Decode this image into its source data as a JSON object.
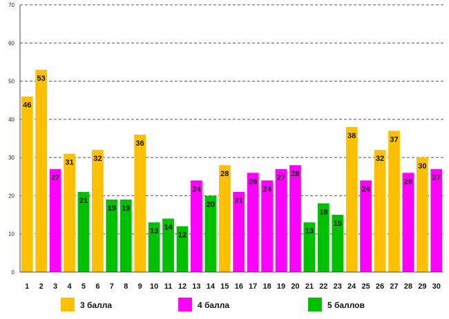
{
  "chart_data": {
    "type": "bar",
    "title": "",
    "xlabel": "",
    "ylabel": "",
    "ylim": [
      0,
      70
    ],
    "yticks": [
      0,
      10,
      20,
      30,
      40,
      50,
      60,
      70
    ],
    "grid": true,
    "legend_position": "bottom",
    "categories": [
      "1",
      "2",
      "3",
      "4",
      "5",
      "6",
      "7",
      "8",
      "9",
      "10",
      "11",
      "12",
      "13",
      "14",
      "15",
      "16",
      "17",
      "18",
      "19",
      "20",
      "21",
      "22",
      "23",
      "24",
      "25",
      "26",
      "27",
      "28",
      "29",
      "30"
    ],
    "values": [
      46,
      53,
      27,
      31,
      21,
      32,
      19,
      19,
      36,
      13,
      14,
      12,
      24,
      20,
      28,
      21,
      26,
      24,
      27,
      28,
      13,
      18,
      15,
      38,
      24,
      32,
      37,
      26,
      30,
      27
    ],
    "grades": [
      3,
      3,
      4,
      3,
      5,
      3,
      5,
      5,
      3,
      5,
      5,
      5,
      4,
      5,
      3,
      4,
      4,
      4,
      4,
      4,
      5,
      5,
      5,
      3,
      4,
      3,
      3,
      4,
      3,
      4
    ],
    "series": [
      {
        "name": "3 балла",
        "grade": 3,
        "color": "#FFC000"
      },
      {
        "name": "4 балла",
        "grade": 4,
        "color": "#FF00FF"
      },
      {
        "name": "5 баллов",
        "grade": 5,
        "color": "#00C000"
      }
    ]
  }
}
